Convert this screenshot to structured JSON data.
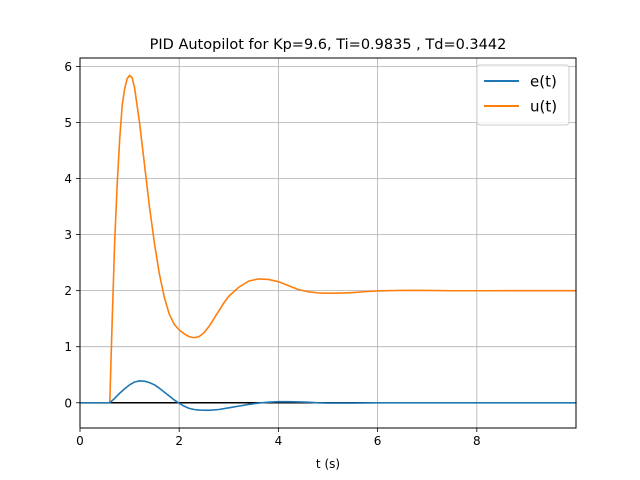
{
  "chart_data": {
    "type": "line",
    "title": "PID Autopilot for Kp=9.6, Ti=0.9835 , Td=0.3442",
    "xlabel": "t (s)",
    "ylabel": "",
    "xlim": [
      0,
      10
    ],
    "ylim": [
      -0.45,
      6.15
    ],
    "xticks": [
      0,
      2,
      4,
      6,
      8
    ],
    "yticks": [
      0,
      1,
      2,
      3,
      4,
      5,
      6
    ],
    "grid": true,
    "legend_position": "top-right",
    "reference_line": {
      "y": 0,
      "color": "#000000"
    },
    "series": [
      {
        "name": "e(t)",
        "color": "#1f77b4",
        "points": [
          [
            0,
            0
          ],
          [
            0.6,
            0
          ],
          [
            0.7,
            0.08
          ],
          [
            0.8,
            0.17
          ],
          [
            0.9,
            0.25
          ],
          [
            1.0,
            0.32
          ],
          [
            1.1,
            0.37
          ],
          [
            1.2,
            0.39
          ],
          [
            1.3,
            0.385
          ],
          [
            1.4,
            0.36
          ],
          [
            1.5,
            0.32
          ],
          [
            1.6,
            0.26
          ],
          [
            1.7,
            0.19
          ],
          [
            1.8,
            0.12
          ],
          [
            1.9,
            0.05
          ],
          [
            2.0,
            -0.01
          ],
          [
            2.1,
            -0.06
          ],
          [
            2.2,
            -0.1
          ],
          [
            2.3,
            -0.12
          ],
          [
            2.4,
            -0.13
          ],
          [
            2.6,
            -0.135
          ],
          [
            2.8,
            -0.12
          ],
          [
            3.0,
            -0.09
          ],
          [
            3.2,
            -0.06
          ],
          [
            3.4,
            -0.03
          ],
          [
            3.6,
            -0.005
          ],
          [
            3.8,
            0.01
          ],
          [
            4.0,
            0.02
          ],
          [
            4.2,
            0.02
          ],
          [
            4.4,
            0.015
          ],
          [
            4.6,
            0.01
          ],
          [
            4.8,
            0.0
          ],
          [
            5.0,
            -0.005
          ],
          [
            5.5,
            -0.005
          ],
          [
            6.0,
            0.0
          ],
          [
            7.0,
            0.0
          ],
          [
            10,
            0
          ]
        ]
      },
      {
        "name": "u(t)",
        "color": "#ff7f0e",
        "points": [
          [
            0,
            0
          ],
          [
            0.6,
            0
          ],
          [
            0.65,
            1.5
          ],
          [
            0.7,
            2.9
          ],
          [
            0.75,
            3.9
          ],
          [
            0.8,
            4.7
          ],
          [
            0.85,
            5.3
          ],
          [
            0.9,
            5.6
          ],
          [
            0.95,
            5.78
          ],
          [
            1.0,
            5.84
          ],
          [
            1.05,
            5.8
          ],
          [
            1.1,
            5.62
          ],
          [
            1.2,
            5.0
          ],
          [
            1.3,
            4.25
          ],
          [
            1.4,
            3.5
          ],
          [
            1.5,
            2.85
          ],
          [
            1.6,
            2.3
          ],
          [
            1.7,
            1.88
          ],
          [
            1.8,
            1.58
          ],
          [
            1.9,
            1.4
          ],
          [
            2.0,
            1.3
          ],
          [
            2.1,
            1.23
          ],
          [
            2.2,
            1.18
          ],
          [
            2.3,
            1.16
          ],
          [
            2.4,
            1.18
          ],
          [
            2.5,
            1.25
          ],
          [
            2.6,
            1.36
          ],
          [
            2.7,
            1.5
          ],
          [
            2.8,
            1.64
          ],
          [
            2.9,
            1.78
          ],
          [
            3.0,
            1.9
          ],
          [
            3.2,
            2.06
          ],
          [
            3.4,
            2.17
          ],
          [
            3.6,
            2.21
          ],
          [
            3.8,
            2.2
          ],
          [
            4.0,
            2.16
          ],
          [
            4.2,
            2.09
          ],
          [
            4.4,
            2.02
          ],
          [
            4.6,
            1.98
          ],
          [
            4.8,
            1.96
          ],
          [
            5.0,
            1.955
          ],
          [
            5.2,
            1.955
          ],
          [
            5.5,
            1.965
          ],
          [
            5.8,
            1.985
          ],
          [
            6.0,
            1.995
          ],
          [
            6.5,
            2.005
          ],
          [
            7.0,
            2.003
          ],
          [
            7.5,
            1.998
          ],
          [
            8.0,
            1.998
          ],
          [
            9.0,
            2.0
          ],
          [
            10,
            2.0
          ]
        ]
      }
    ]
  }
}
